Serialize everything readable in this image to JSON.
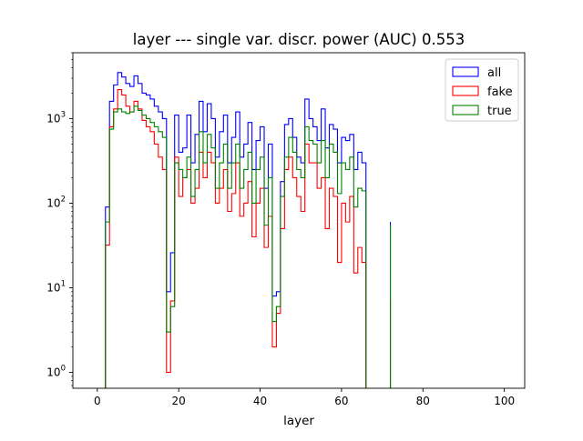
{
  "chart_data": {
    "type": "histogram",
    "title": "layer --- single var. discr. power (AUC) 0.553",
    "xlabel": "layer",
    "ylabel": "",
    "xlim": [
      -6,
      105
    ],
    "ylim": [
      0.65,
      6000
    ],
    "yscale": "log",
    "x_ticks": [
      0,
      20,
      40,
      60,
      80,
      100
    ],
    "x_tick_labels": [
      "0",
      "20",
      "40",
      "60",
      "80",
      "100"
    ],
    "y_ticks": [
      1,
      10,
      100,
      1000
    ],
    "y_tick_labels": [
      "10^0",
      "10^1",
      "10^2",
      "10^3"
    ],
    "legend_position": "top-right",
    "bin_edges": [
      1,
      2,
      3,
      4,
      5,
      6,
      7,
      8,
      9,
      10,
      11,
      12,
      13,
      14,
      15,
      16,
      17,
      18,
      19,
      20,
      21,
      22,
      23,
      24,
      25,
      26,
      27,
      28,
      29,
      30,
      31,
      32,
      33,
      34,
      35,
      36,
      37,
      38,
      39,
      40,
      41,
      42,
      43,
      44,
      45,
      46,
      47,
      48,
      49,
      50,
      51,
      52,
      53,
      54,
      55,
      56,
      57,
      58,
      59,
      60,
      61,
      62,
      63,
      64,
      65,
      66,
      67,
      68,
      69,
      70,
      71,
      72
    ],
    "series": [
      {
        "name": "all",
        "color": "#0000ff",
        "values": [
          0,
          90,
          1600,
          2500,
          3500,
          3100,
          2600,
          2400,
          3200,
          2600,
          2000,
          1900,
          1700,
          1400,
          1200,
          1000,
          9,
          26,
          1100,
          400,
          450,
          1100,
          300,
          650,
          1600,
          700,
          1500,
          1000,
          350,
          700,
          1100,
          300,
          600,
          1200,
          350,
          500,
          900,
          250,
          550,
          800,
          150,
          500,
          8,
          9,
          180,
          850,
          1000,
          600,
          350,
          300,
          1700,
          1000,
          800,
          550,
          1300,
          450,
          850,
          750,
          300,
          600,
          550,
          650,
          250,
          400,
          300,
          0,
          0,
          0,
          0,
          0,
          0
        ],
        "tail": 60
      },
      {
        "name": "fake",
        "color": "#ff0000",
        "values": [
          0,
          32,
          800,
          1300,
          2200,
          1900,
          1400,
          1200,
          1600,
          1300,
          950,
          800,
          700,
          500,
          350,
          250,
          1,
          7,
          350,
          120,
          200,
          250,
          100,
          150,
          400,
          200,
          400,
          300,
          100,
          150,
          250,
          80,
          130,
          300,
          70,
          100,
          180,
          40,
          100,
          150,
          30,
          70,
          2,
          5,
          50,
          250,
          350,
          200,
          120,
          80,
          500,
          300,
          300,
          150,
          200,
          50,
          150,
          120,
          20,
          100,
          60,
          120,
          15,
          30,
          20,
          0,
          0,
          0,
          0,
          0,
          0
        ],
        "tail": 7
      },
      {
        "name": "true",
        "color": "#008000",
        "values": [
          0,
          60,
          750,
          1200,
          1300,
          1200,
          1150,
          1200,
          1400,
          1250,
          1100,
          1000,
          900,
          800,
          700,
          600,
          3,
          6,
          300,
          250,
          200,
          350,
          120,
          250,
          700,
          300,
          650,
          450,
          150,
          300,
          500,
          150,
          300,
          500,
          150,
          250,
          400,
          100,
          250,
          350,
          55,
          200,
          4,
          6,
          120,
          350,
          600,
          400,
          250,
          200,
          800,
          550,
          500,
          300,
          550,
          200,
          500,
          400,
          130,
          300,
          250,
          350,
          90,
          150,
          140,
          0,
          0,
          0,
          0,
          0,
          0
        ],
        "tail": 55
      }
    ]
  }
}
